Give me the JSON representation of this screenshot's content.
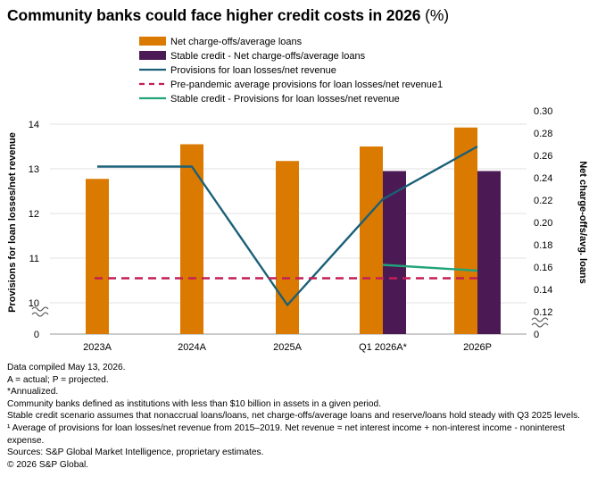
{
  "title": "Community banks could face higher credit costs in 2026",
  "title_unit": "(%)",
  "colors": {
    "bar_primary": "#DA7A00",
    "bar_stable": "#4B1A54",
    "line_provisions": "#1A6078",
    "line_pre_pandemic": "#C41E55",
    "line_stable": "#22A37A"
  },
  "chart_data": {
    "type": "bar",
    "categories": [
      "2023A",
      "2024A",
      "2025A",
      "Q1 2026A*",
      "2026P"
    ],
    "left_axis": {
      "label": "Provisions for loan losses/net revenue",
      "ticks": [
        "14",
        "13",
        "12",
        "11",
        "10",
        "0"
      ],
      "tick_values": [
        14,
        13,
        12,
        11,
        10
      ],
      "broken_axis": true
    },
    "right_axis": {
      "label": "Net charge-offs/avg. loans",
      "ticks": [
        "0.30",
        "0.28",
        "0.26",
        "0.24",
        "0.22",
        "0.20",
        "0.18",
        "0.16",
        "0.14",
        "0.12",
        "0"
      ],
      "tick_values": [
        0.3,
        0.28,
        0.26,
        0.24,
        0.22,
        0.2,
        0.18,
        0.16,
        0.14,
        0.12
      ],
      "broken_axis": true
    },
    "series": [
      {
        "name": "Net charge-offs/average loans",
        "kind": "bar",
        "axis": "right",
        "values": [
          0.239,
          0.27,
          0.255,
          0.268,
          0.285
        ]
      },
      {
        "name": "Stable credit - Net charge-offs/average loans",
        "kind": "bar",
        "axis": "right",
        "values": [
          null,
          null,
          null,
          0.246,
          0.246
        ]
      },
      {
        "name": "Provisions for loan losses/net revenue",
        "kind": "line",
        "axis": "left",
        "values": [
          13.05,
          13.05,
          9.95,
          12.32,
          13.5
        ]
      },
      {
        "name": "Pre-pandemic average provisions for loan losses/net revenue1",
        "kind": "dashed",
        "axis": "left",
        "values": [
          10.55,
          10.55,
          10.55,
          10.55,
          10.55
        ]
      },
      {
        "name": "Stable credit - Provisions for loan losses/net revenue",
        "kind": "line",
        "axis": "left",
        "values": [
          null,
          null,
          null,
          10.85,
          10.72
        ]
      }
    ]
  },
  "footnotes": [
    "Data compiled May 13, 2026.",
    "A = actual; P = projected.",
    "*Annualized.",
    "Community banks defined as institutions with less than $10 billion in assets in a given period.",
    "Stable credit scenario assumes that nonaccrual loans/loans, net charge-offs/average loans and reserve/loans hold steady with Q3 2025 levels.",
    "¹ Average of provisions for loan losses/net revenue from 2015–2019. Net revenue = net interest income + non-interest income - noninterest expense.",
    "Sources: S&P Global Market Intelligence, proprietary estimates.",
    "© 2026 S&P Global."
  ]
}
